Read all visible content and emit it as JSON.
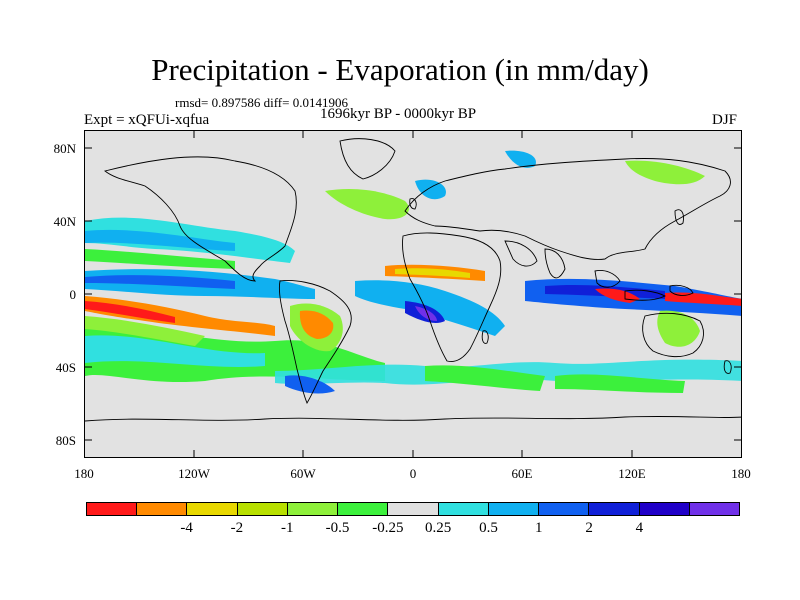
{
  "title": "Precipitation - Evaporation (in mm/day)",
  "stats": "rmsd= 0.897586 diff= 0.0141906",
  "period": "1696kyr BP - 0000kyr BP",
  "experiment": "Expt = xQFUi-xqfua",
  "season": "DJF",
  "y_axis": {
    "labels": [
      "80N",
      "40N",
      "0",
      "40S",
      "80S"
    ]
  },
  "x_axis": {
    "labels": [
      "180",
      "120W",
      "60W",
      "0",
      "60E",
      "120E",
      "180"
    ]
  },
  "colorbar": {
    "colors": [
      "#ff1a1a",
      "#ff8a00",
      "#e8d800",
      "#b8e000",
      "#8ef03a",
      "#3cf03c",
      "#e0e0e0",
      "#30e0e0",
      "#10b0f0",
      "#1060f0",
      "#1020d8",
      "#2000c8",
      "#7030e8"
    ],
    "labels": [
      "-4",
      "-2",
      "-1",
      "-0.5",
      "-0.25",
      "0.25",
      "0.5",
      "1",
      "2",
      "4"
    ]
  },
  "colors": {
    "land_outline": "#000000",
    "background": "#e2e2e2"
  }
}
